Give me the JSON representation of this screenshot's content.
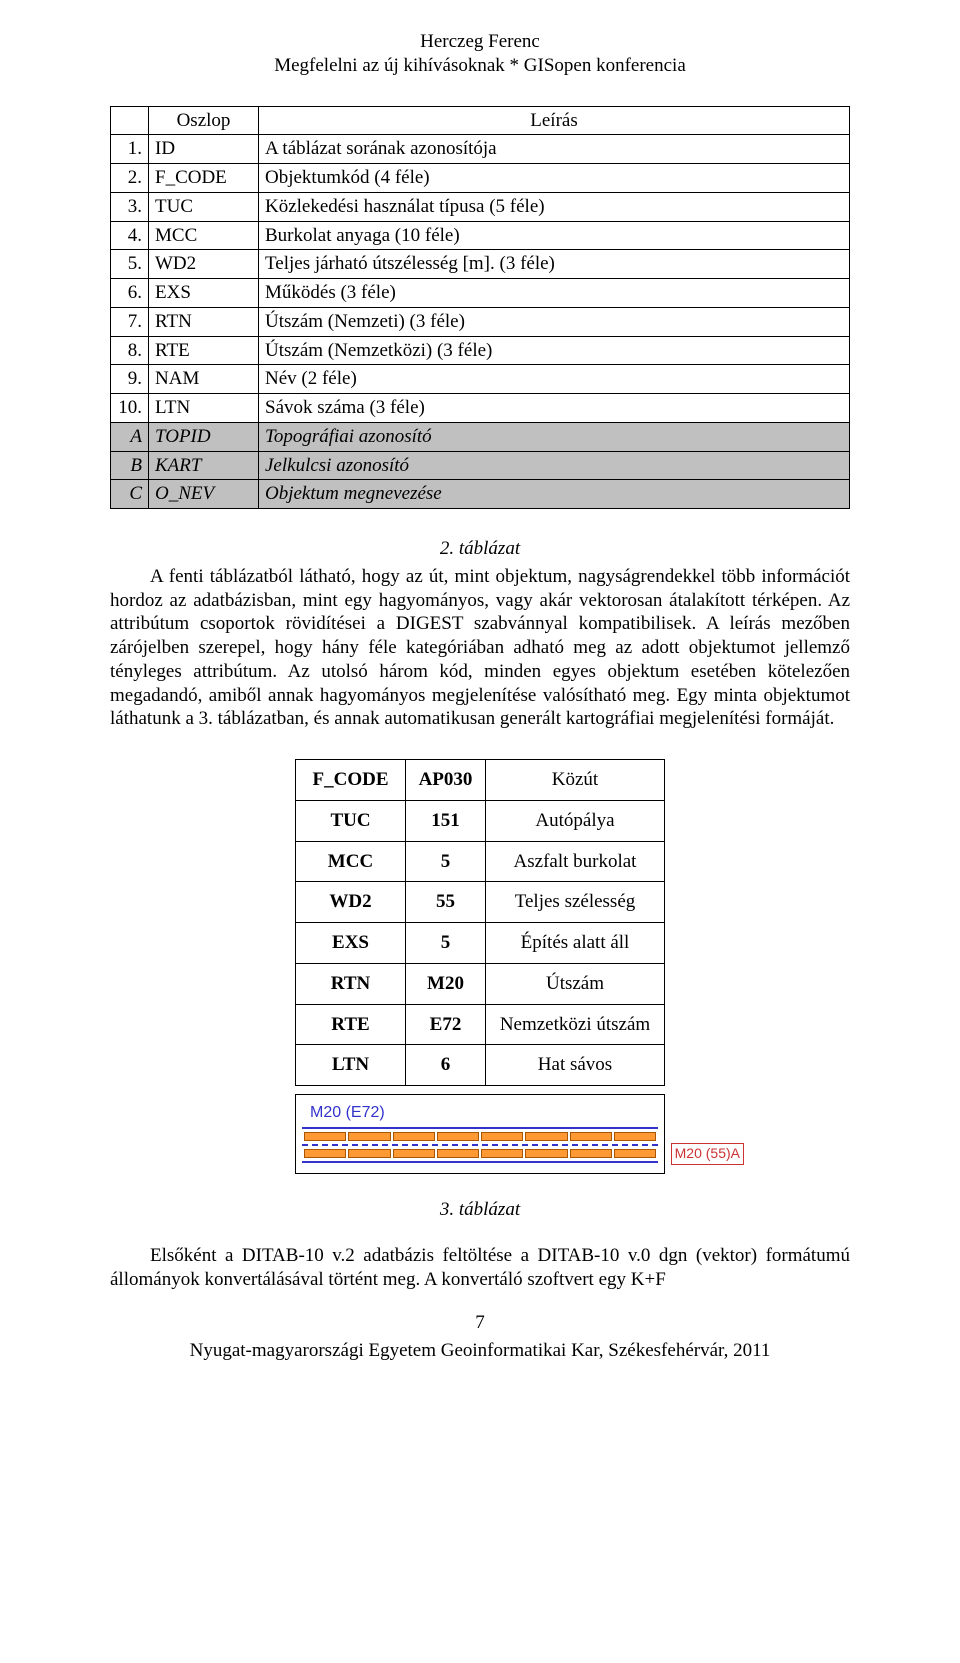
{
  "header": {
    "line1": "Herczeg Ferenc",
    "line2": "Megfelelni az új kihívásoknak * GISopen konferencia"
  },
  "table1": {
    "head": {
      "col2": "Oszlop",
      "col3": "Leírás"
    },
    "rows": [
      {
        "n": "1.",
        "code": "ID",
        "desc": "A táblázat sorának azonosítója"
      },
      {
        "n": "2.",
        "code": "F_CODE",
        "desc": "Objektumkód (4 féle)"
      },
      {
        "n": "3.",
        "code": "TUC",
        "desc": "Közlekedési használat típusa (5 féle)"
      },
      {
        "n": "4.",
        "code": "MCC",
        "desc": "Burkolat anyaga (10 féle)"
      },
      {
        "n": "5.",
        "code": "WD2",
        "desc": "Teljes járható útszélesség [m]. (3 féle)"
      },
      {
        "n": "6.",
        "code": "EXS",
        "desc": "Működés (3 féle)"
      },
      {
        "n": "7.",
        "code": "RTN",
        "desc": "Útszám (Nemzeti) (3 féle)"
      },
      {
        "n": "8.",
        "code": "RTE",
        "desc": "Útszám (Nemzetközi) (3 féle)"
      },
      {
        "n": "9.",
        "code": "NAM",
        "desc": "Név (2 féle)"
      },
      {
        "n": "10.",
        "code": "LTN",
        "desc": "Sávok száma (3 féle)"
      }
    ],
    "shaded": [
      {
        "n": "A",
        "code": "TOPID",
        "desc": "Topográfiai azonosító"
      },
      {
        "n": "B",
        "code": "KART",
        "desc": "Jelkulcsi azonosító"
      },
      {
        "n": "C",
        "code": "O_NEV",
        "desc": "Objektum megnevezése"
      }
    ]
  },
  "caption2": "2. táblázat",
  "para1": "A fenti táblázatból látható, hogy az út, mint objektum, nagyságrendekkel több információt hordoz az adatbázisban, mint egy hagyományos, vagy akár vektorosan átalakított térképen. Az attribútum csoportok rövidítései a DIGEST szabvánnyal kompatibilisek. A leírás mezőben zárójelben szerepel, hogy hány féle kategóriában adható meg az adott objektumot jellemző tényleges attribútum. Az utolsó három kód, minden egyes objektum esetében kötelezően megadandó, amiből annak hagyományos megjelenítése valósítható meg. Egy minta objektumot láthatunk a 3. táblázatban, és annak automatikusan generált kartográfiai megjelenítési formáját.",
  "table2": {
    "rows": [
      {
        "c1": "F_CODE",
        "c2": "AP030",
        "c3": "Közút"
      },
      {
        "c1": "TUC",
        "c2": "151",
        "c3": "Autópálya"
      },
      {
        "c1": "MCC",
        "c2": "5",
        "c3": "Aszfalt burkolat"
      },
      {
        "c1": "WD2",
        "c2": "55",
        "c3": "Teljes szélesség"
      },
      {
        "c1": "EXS",
        "c2": "5",
        "c3": "Építés alatt áll"
      },
      {
        "c1": "RTN",
        "c2": "M20",
        "c3": "Útszám"
      },
      {
        "c1": "RTE",
        "c2": "E72",
        "c3": "Nemzetközi útszám"
      },
      {
        "c1": "LTN",
        "c2": "6",
        "c3": "Hat sávos"
      }
    ]
  },
  "diagram": {
    "top_label": "M20 (E72)",
    "side_label": "M20 (55)A",
    "lane_color": "#ff9933",
    "line_color": "#3333cc",
    "side_color": "#cc3333"
  },
  "caption3": "3. táblázat",
  "para2": "Elsőként a DITAB-10 v.2 adatbázis feltöltése a DITAB-10 v.0 dgn (vektor) formátumú állományok konvertálásával történt meg. A konvertáló szoftvert egy K+F",
  "footer": {
    "page": "7",
    "line": "Nyugat-magyarországi Egyetem Geoinformatikai Kar, Székesfehérvár, 2011"
  }
}
